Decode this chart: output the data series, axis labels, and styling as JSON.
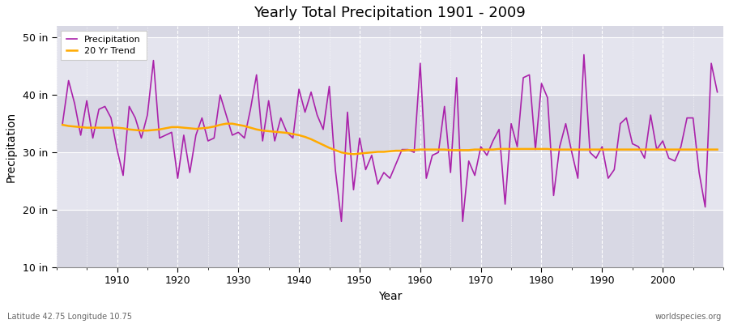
{
  "title": "Yearly Total Precipitation 1901 - 2009",
  "xlabel": "Year",
  "ylabel": "Precipitation",
  "lat_lon_label": "Latitude 42.75 Longitude 10.75",
  "watermark": "worldspecies.org",
  "ylim": [
    10,
    52
  ],
  "yticks": [
    10,
    20,
    30,
    40,
    50
  ],
  "ytick_labels": [
    "10 in",
    "20 in",
    "30 in",
    "40 in",
    "50 in"
  ],
  "xlim": [
    1900,
    2010
  ],
  "bg_light": "#e8e8ee",
  "bg_dark": "#d8d8e0",
  "precip_color": "#aa22aa",
  "trend_color": "#ffaa00",
  "precip_linewidth": 1.2,
  "trend_linewidth": 1.8,
  "years": [
    1901,
    1902,
    1903,
    1904,
    1905,
    1906,
    1907,
    1908,
    1909,
    1910,
    1911,
    1912,
    1913,
    1914,
    1915,
    1916,
    1917,
    1918,
    1919,
    1920,
    1921,
    1922,
    1923,
    1924,
    1925,
    1926,
    1927,
    1928,
    1929,
    1930,
    1931,
    1932,
    1933,
    1934,
    1935,
    1936,
    1937,
    1938,
    1939,
    1940,
    1941,
    1942,
    1943,
    1944,
    1945,
    1946,
    1947,
    1948,
    1949,
    1950,
    1951,
    1952,
    1953,
    1954,
    1955,
    1956,
    1957,
    1958,
    1959,
    1960,
    1961,
    1962,
    1963,
    1964,
    1965,
    1966,
    1967,
    1968,
    1969,
    1970,
    1971,
    1972,
    1973,
    1974,
    1975,
    1976,
    1977,
    1978,
    1979,
    1980,
    1981,
    1982,
    1983,
    1984,
    1985,
    1986,
    1987,
    1988,
    1989,
    1990,
    1991,
    1992,
    1993,
    1994,
    1995,
    1996,
    1997,
    1998,
    1999,
    2000,
    2001,
    2002,
    2003,
    2004,
    2005,
    2006,
    2007,
    2008,
    2009
  ],
  "precip": [
    35.0,
    42.5,
    38.5,
    33.0,
    39.0,
    32.5,
    37.5,
    38.0,
    36.0,
    30.5,
    26.0,
    38.0,
    36.0,
    32.5,
    36.5,
    46.0,
    32.5,
    33.0,
    33.5,
    25.5,
    33.0,
    26.5,
    33.0,
    36.0,
    32.0,
    32.5,
    40.0,
    36.5,
    33.0,
    33.5,
    32.5,
    37.5,
    43.5,
    32.0,
    39.0,
    32.0,
    36.0,
    33.5,
    32.5,
    41.0,
    37.0,
    40.5,
    36.5,
    34.0,
    41.5,
    27.0,
    18.0,
    37.0,
    23.5,
    32.5,
    27.0,
    29.5,
    24.5,
    26.5,
    25.5,
    28.0,
    30.5,
    30.5,
    30.0,
    45.5,
    25.5,
    29.5,
    30.0,
    38.0,
    26.5,
    43.0,
    18.0,
    28.5,
    26.0,
    31.0,
    29.5,
    32.0,
    34.0,
    21.0,
    35.0,
    31.0,
    43.0,
    43.5,
    30.5,
    42.0,
    39.5,
    22.5,
    31.0,
    35.0,
    30.0,
    25.5,
    47.0,
    30.0,
    29.0,
    31.0,
    25.5,
    27.0,
    35.0,
    36.0,
    31.5,
    31.0,
    29.0,
    36.5,
    30.5,
    32.0,
    29.0,
    28.5,
    31.0,
    36.0,
    36.0,
    26.5,
    20.5,
    45.5,
    40.5
  ],
  "trend": [
    34.8,
    34.6,
    34.5,
    34.4,
    34.3,
    34.3,
    34.3,
    34.3,
    34.3,
    34.3,
    34.2,
    34.0,
    33.9,
    33.8,
    33.8,
    33.9,
    34.0,
    34.2,
    34.4,
    34.4,
    34.3,
    34.2,
    34.1,
    34.2,
    34.3,
    34.5,
    34.8,
    35.0,
    35.0,
    34.8,
    34.6,
    34.3,
    34.0,
    33.8,
    33.7,
    33.6,
    33.5,
    33.4,
    33.2,
    33.0,
    32.7,
    32.3,
    31.8,
    31.3,
    30.8,
    30.4,
    30.0,
    29.8,
    29.7,
    29.8,
    29.9,
    30.0,
    30.1,
    30.1,
    30.2,
    30.3,
    30.3,
    30.4,
    30.4,
    30.5,
    30.5,
    30.5,
    30.5,
    30.5,
    30.4,
    30.4,
    30.4,
    30.4,
    30.5,
    30.5,
    30.5,
    30.5,
    30.6,
    30.6,
    30.6,
    30.6,
    30.6,
    30.6,
    30.6,
    30.6,
    30.6,
    30.5,
    30.5,
    30.5,
    30.5,
    30.5,
    30.5,
    30.5,
    30.5,
    30.5,
    30.5,
    30.5,
    30.5,
    30.5,
    30.5,
    30.5,
    30.5,
    30.5,
    30.5,
    30.5,
    30.5,
    30.5,
    30.5,
    30.5,
    30.5,
    30.5,
    30.5,
    30.5,
    30.5
  ]
}
